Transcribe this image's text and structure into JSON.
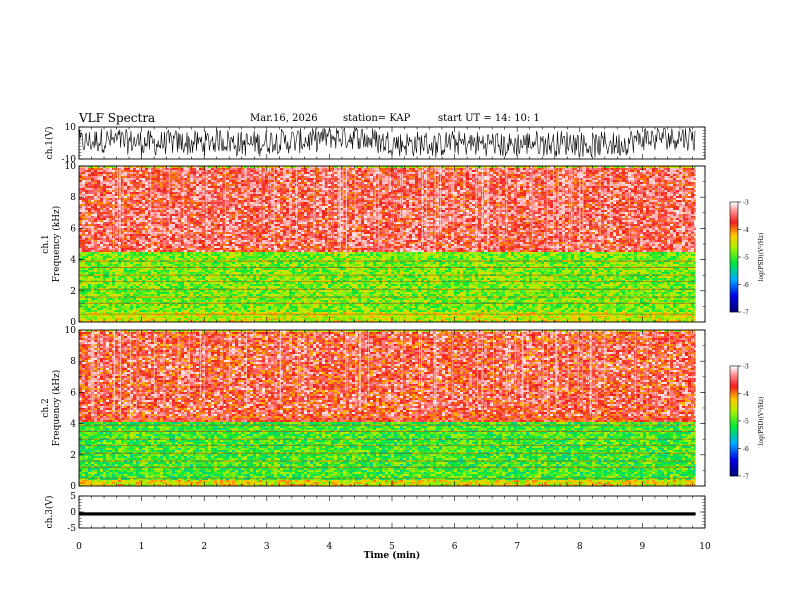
{
  "header": {
    "title": "VLF Spectra",
    "date": "Mar.16, 2026",
    "station": "station= KAP",
    "start": "start  UT =   14: 10: 1"
  },
  "chart_data": [
    {
      "type": "line",
      "panel": "ch1-waveform",
      "ylabel": "ch.1(V)",
      "ylim": [
        -10,
        10
      ],
      "ytick_labels": [
        "-10",
        "10"
      ],
      "xlim": [
        0,
        10
      ],
      "description_of_signal": "noisy waveform spanning roughly -10 to +10 V",
      "x_end": 9.85
    },
    {
      "type": "heatmap",
      "panel": "ch1-spectrogram",
      "ylabel_line1": "ch.1",
      "ylabel_line2": "Frequency  (kHz)",
      "ylim": [
        0,
        10
      ],
      "ytick_labels": [
        "0",
        "2",
        "4",
        "6",
        "8",
        "10"
      ],
      "xlim": [
        0,
        10
      ],
      "x_end": 9.85,
      "colorbar": {
        "label": "log(PSD)(V²/Hz)",
        "range": [
          -7,
          -3
        ],
        "tick_labels": [
          "-7",
          "-6",
          "-5",
          "-4",
          "-3"
        ]
      },
      "bands": [
        {
          "from_khz": 0,
          "to_khz": 0.7,
          "level": -4.5
        },
        {
          "from_khz": 0.7,
          "to_khz": 4.5,
          "level": -4.8
        },
        {
          "from_khz": 4.5,
          "to_khz": 10,
          "level": -3.6
        }
      ]
    },
    {
      "type": "heatmap",
      "panel": "ch2-spectrogram",
      "ylabel_line1": "ch.2",
      "ylabel_line2": "Frequency  (kHz)",
      "ylim": [
        0,
        10
      ],
      "ytick_labels": [
        "0",
        "2",
        "4",
        "6",
        "8",
        "10"
      ],
      "xlim": [
        0,
        10
      ],
      "x_end": 9.85,
      "colorbar": {
        "label": "log(PSD)(V²/Hz)",
        "range": [
          -7,
          -3
        ],
        "tick_labels": [
          "-7",
          "-6",
          "-5",
          "-4",
          "-3"
        ]
      },
      "bands": [
        {
          "from_khz": 0,
          "to_khz": 0.5,
          "level": -4.4
        },
        {
          "from_khz": 0.5,
          "to_khz": 4.2,
          "level": -5.0
        },
        {
          "from_khz": 4.2,
          "to_khz": 10,
          "level": -3.7
        }
      ]
    },
    {
      "type": "line",
      "panel": "ch3-waveform",
      "ylabel": "ch.3(V)",
      "ylim": [
        -5,
        5
      ],
      "ytick_labels": [
        "-5",
        "0",
        "5"
      ],
      "xlim": [
        0,
        10
      ],
      "x_end": 9.85,
      "description_of_signal": "constant-amplitude band near -0.6 V",
      "band_center": -0.6,
      "band_halfwidth": 0.5
    }
  ],
  "xaxis": {
    "label": "Time  (min)",
    "range": [
      0,
      10
    ],
    "tick_labels": [
      "0",
      "1",
      "2",
      "3",
      "4",
      "5",
      "6",
      "7",
      "8",
      "9",
      "10"
    ]
  },
  "colors": {
    "axis": "#000000",
    "spectrum_low": "#0000c8",
    "spectrum_mid": "#00e000",
    "spectrum_high": "#ff2020",
    "spectrum_top": "#ffffff"
  }
}
